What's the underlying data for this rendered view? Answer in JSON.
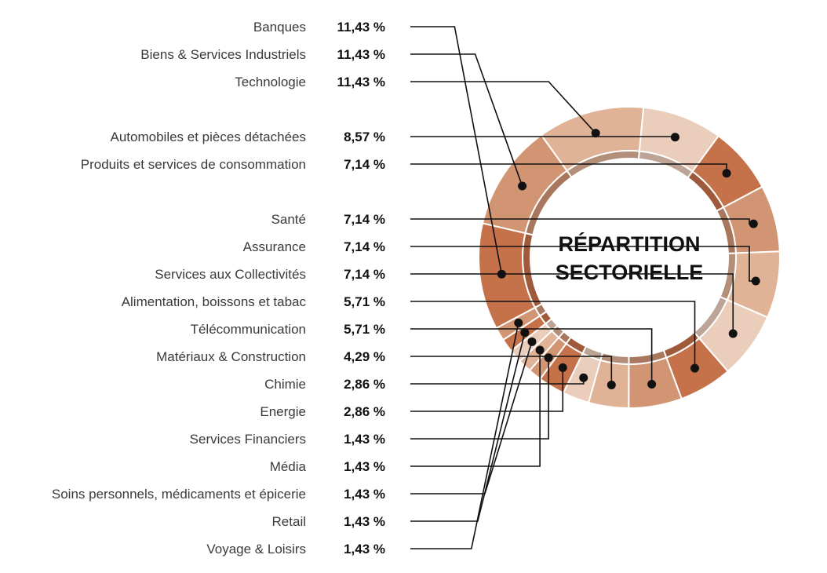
{
  "chart_data": {
    "type": "donut",
    "center_title_lines": [
      "RÉPARTITION",
      "SECTORIELLE"
    ],
    "slices": [
      {
        "label": "Banques",
        "value": 11.43,
        "value_text": "11,43 %",
        "color": "#c5714a"
      },
      {
        "label": "Biens & Services Industriels",
        "value": 11.43,
        "value_text": "11,43 %",
        "color": "#d29574"
      },
      {
        "label": "Technologie",
        "value": 11.43,
        "value_text": "11,43 %",
        "color": "#e0b296"
      },
      {
        "label": "Automobiles et pièces détachées",
        "value": 8.57,
        "value_text": "8,57 %",
        "color": "#ebcdbb"
      },
      {
        "label": "Produits et services de consommation",
        "value": 7.14,
        "value_text": "7,14 %",
        "color": "#c5714a"
      },
      {
        "label": "Santé",
        "value": 7.14,
        "value_text": "7,14 %",
        "color": "#d29574"
      },
      {
        "label": "Assurance",
        "value": 7.14,
        "value_text": "7,14 %",
        "color": "#e0b296"
      },
      {
        "label": "Services aux Collectivités",
        "value": 7.14,
        "value_text": "7,14 %",
        "color": "#ebcdbb"
      },
      {
        "label": "Alimentation, boissons et tabac",
        "value": 5.71,
        "value_text": "5,71 %",
        "color": "#c5714a"
      },
      {
        "label": "Télécommunication",
        "value": 5.71,
        "value_text": "5,71 %",
        "color": "#d29574"
      },
      {
        "label": "Matériaux & Construction",
        "value": 4.29,
        "value_text": "4,29 %",
        "color": "#e0b296"
      },
      {
        "label": "Chimie",
        "value": 2.86,
        "value_text": "2,86 %",
        "color": "#ebcdbb"
      },
      {
        "label": "Energie",
        "value": 2.86,
        "value_text": "2,86 %",
        "color": "#c5714a"
      },
      {
        "label": "Services Financiers",
        "value": 1.43,
        "value_text": "1,43 %",
        "color": "#d29574"
      },
      {
        "label": "Média",
        "value": 1.43,
        "value_text": "1,43 %",
        "color": "#e0b296"
      },
      {
        "label": "Soins personnels, médicaments et épicerie",
        "value": 1.43,
        "value_text": "1,43 %",
        "color": "#ebcdbb"
      },
      {
        "label": "Retail",
        "value": 1.43,
        "value_text": "1,43 %",
        "color": "#c5714a"
      },
      {
        "label": "Voyage & Loisirs",
        "value": 1.43,
        "value_text": "1,43 %",
        "color": "#d29574"
      }
    ]
  }
}
